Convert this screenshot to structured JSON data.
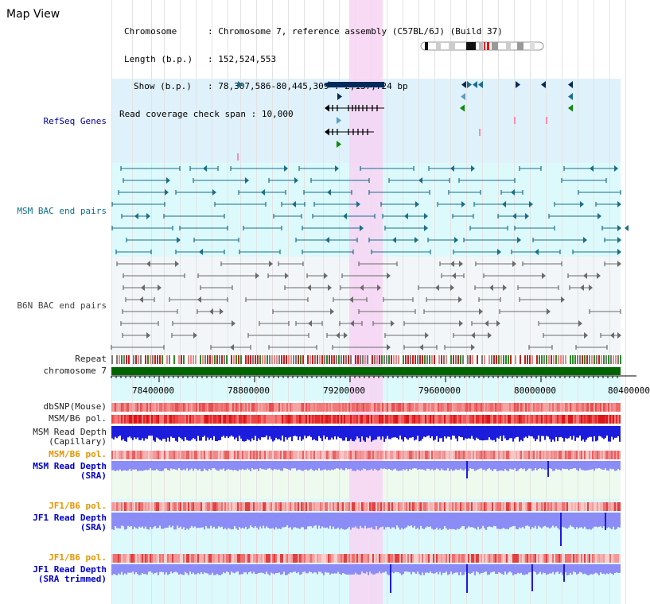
{
  "window_title": "Map View",
  "header": {
    "chromosome_key": "Chromosome",
    "chromosome_value": "Chromosome 7, reference assembly (C57BL/6J) (Build 37)",
    "length_key": "Length (b.p.)",
    "length_value": "152,524,553",
    "show_key": "Show (b.p.)",
    "show_value": "78,307,586-80,445,309 : 2,137,724 bp",
    "coverage_key": "Read coverage check span",
    "coverage_value": "10,000"
  },
  "tracks": {
    "refseq": "RefSeq Genes",
    "msm_bac": "MSM BAC end pairs",
    "b6n_bac": "B6N BAC end pairs",
    "repeat": "Repeat",
    "chromosome": "chromosome 7",
    "dbsnp": "dbSNP(Mouse)",
    "msm_b6_pol": "MSM/B6 pol.",
    "msm_read_depth_cap_1": "MSM Read Depth",
    "msm_read_depth_cap_2": "(Capillary)",
    "msm_b6_pol_2": "MSM/B6 pol.",
    "msm_read_depth_sra_1": "MSM Read Depth",
    "msm_read_depth_sra_2": "(SRA)",
    "jf1_b6_pol": "JF1/B6 pol.",
    "jf1_read_depth_sra_1": "JF1 Read Depth",
    "jf1_read_depth_sra_2": "(SRA)",
    "jf1_b6_pol_2": "JF1/B6 pol.",
    "jf1_read_depth_trim_1": "JF1 Read Depth",
    "jf1_read_depth_trim_2": "(SRA trimmed)"
  },
  "axis": {
    "ticks": [
      "78400000",
      "78800000",
      "79200000",
      "79600000",
      "80000000",
      "80400000"
    ]
  },
  "colors": {
    "highlight": "#f7d3f3",
    "refseq_bg": "#dff1fb",
    "msm_bg": "#dcfafc",
    "b6n_bg": "#f2f6f8",
    "gene_dark": "#002a5c",
    "gene_teal": "#1a6e8a",
    "gene_green": "#00a000",
    "bac_gray": "#555555",
    "chrom_green": "#006400",
    "depth_blue": "#1c1cdd",
    "depth_light": "#8c8cf7",
    "snp_red": "#e21d1d"
  }
}
